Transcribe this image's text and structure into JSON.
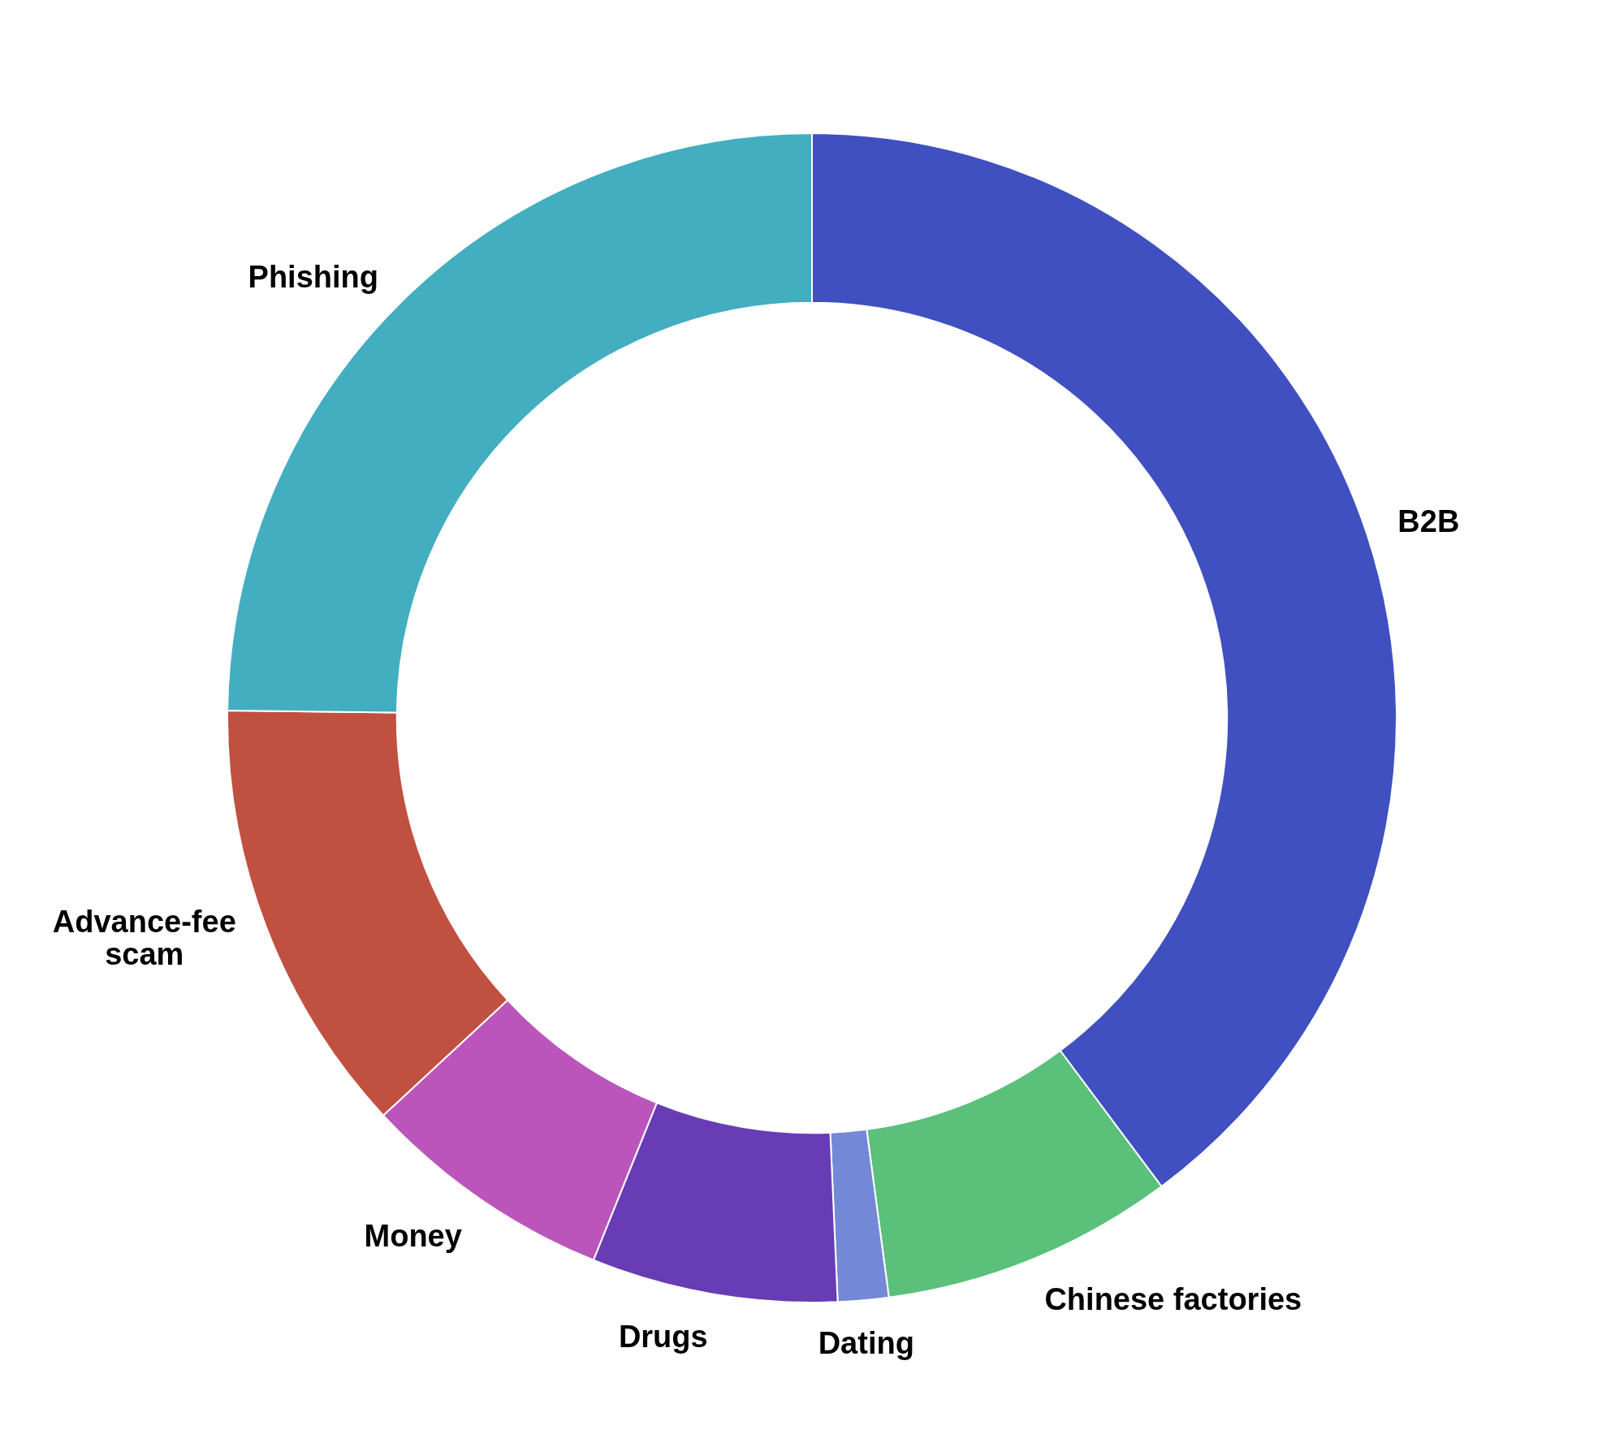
{
  "chart_data": {
    "type": "donut",
    "categories": [
      "B2B",
      "Chinese factories",
      "Dating",
      "Drugs",
      "Money",
      "Advance-fee scam",
      "Phishing"
    ],
    "values": [
      39.8,
      8.1,
      1.4,
      6.8,
      7.0,
      12.1,
      24.8
    ],
    "colors": [
      "#4050c0",
      "#5ac07a",
      "#7488d8",
      "#673cb4",
      "#bc55bb",
      "#c05040",
      "#42aec0"
    ],
    "legend": false
  }
}
